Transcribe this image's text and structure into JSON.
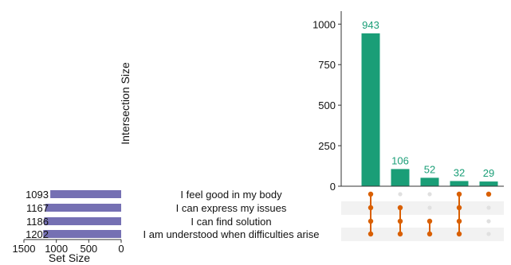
{
  "chart_data": {
    "type": "bar",
    "subtype": "upset",
    "title": "",
    "ylabel": "Intersection Size",
    "xlabel_sets": "Set Size",
    "ylim": [
      0,
      1080
    ],
    "yticks": [
      0,
      250,
      500,
      750,
      1000
    ],
    "set_size_ticks": [
      1500,
      1000,
      500,
      0
    ],
    "set_size_max": 1500,
    "sets": [
      {
        "name": "I feel good in my body",
        "size": 1093
      },
      {
        "name": "I can express my issues",
        "size": 1167
      },
      {
        "name": "I can find solution",
        "size": 1186
      },
      {
        "name": "I am understood when difficulties arise",
        "size": 1202
      }
    ],
    "intersections": [
      {
        "value": 943,
        "members": [
          0,
          1,
          2,
          3
        ]
      },
      {
        "value": 106,
        "members": [
          1,
          2,
          3
        ]
      },
      {
        "value": 52,
        "members": [
          2,
          3
        ]
      },
      {
        "value": 32,
        "members": [
          0,
          1,
          2,
          3
        ]
      },
      {
        "value": 29,
        "members": [
          0
        ]
      }
    ],
    "colors": {
      "intersection_bar": "#1a9e77",
      "bar_label": "#1a9e77",
      "set_bar": "#7570b3",
      "dot_active": "#d95f02",
      "dot_inactive": "#e0e0e0",
      "stripe": "#f2f2f2",
      "axis": "#333333"
    },
    "grid": false
  }
}
